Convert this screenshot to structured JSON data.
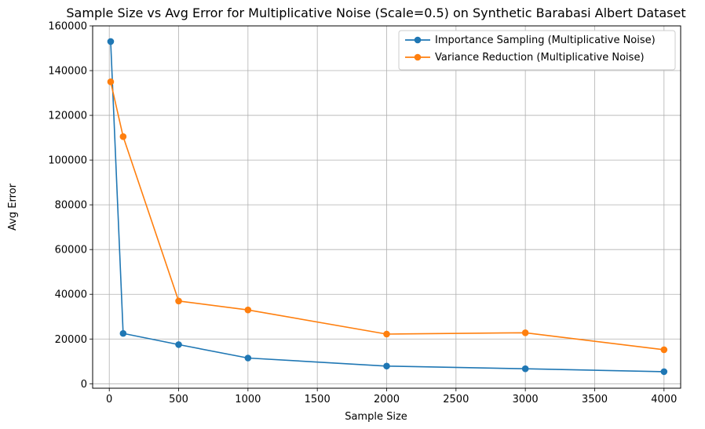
{
  "chart_data": {
    "type": "line",
    "title": "Sample Size vs Avg Error for Multiplicative Noise (Scale=0.5) on Synthetic Barabasi Albert Dataset",
    "xlabel": "Sample Size",
    "ylabel": "Avg Error",
    "xlim": [
      -120,
      4120
    ],
    "ylim": [
      -2000,
      160000
    ],
    "xticks": [
      0,
      500,
      1000,
      1500,
      2000,
      2500,
      3000,
      3500,
      4000
    ],
    "yticks": [
      0,
      20000,
      40000,
      60000,
      80000,
      100000,
      120000,
      140000,
      160000
    ],
    "grid": true,
    "legend_position": "top-right",
    "x": [
      10,
      100,
      500,
      1000,
      2000,
      3000,
      4000
    ],
    "series": [
      {
        "name": "Importance Sampling (Multiplicative Noise)",
        "color": "#1f77b4",
        "marker": "circle",
        "values": [
          153000,
          22500,
          17500,
          11500,
          7900,
          6700,
          5400
        ]
      },
      {
        "name": "Variance Reduction (Multiplicative Noise)",
        "color": "#ff7f0e",
        "marker": "circle",
        "values": [
          135000,
          110500,
          37000,
          33000,
          22200,
          22800,
          15200
        ]
      }
    ]
  }
}
